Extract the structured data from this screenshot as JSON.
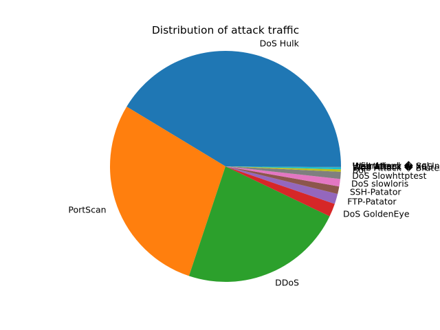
{
  "chart_data": {
    "type": "pie",
    "title": "Distribution of attack traffic",
    "start_angle": "counterclockwise from 3 o'clock (0°)",
    "slices": [
      {
        "label": "DoS Hulk",
        "value": 230124,
        "color": "#1f77b4"
      },
      {
        "label": "PortScan",
        "value": 158804,
        "color": "#ff7f0e"
      },
      {
        "label": "DDoS",
        "value": 128025,
        "color": "#2ca02c"
      },
      {
        "label": "DoS GoldenEye",
        "value": 10293,
        "color": "#d62728"
      },
      {
        "label": "FTP-Patator",
        "value": 7935,
        "color": "#9467bd"
      },
      {
        "label": "SSH-Patator",
        "value": 5897,
        "color": "#8c564b"
      },
      {
        "label": "DoS slowloris",
        "value": 5796,
        "color": "#e377c2"
      },
      {
        "label": "DoS Slowhttptest",
        "value": 5499,
        "color": "#7f7f7f"
      },
      {
        "label": "Bot",
        "value": 1956,
        "color": "#bcbd22"
      },
      {
        "label": "Web Attack � Brute Force",
        "value": 1507,
        "color": "#17becf"
      },
      {
        "label": "Web Attack � XSS",
        "value": 652,
        "color": "#1f77b4"
      },
      {
        "label": "Infiltration",
        "value": 36,
        "color": "#ff7f0e"
      },
      {
        "label": "Web Attack � Sql Injection",
        "value": 21,
        "color": "#2ca02c"
      },
      {
        "label": "Heartbleed",
        "value": 11,
        "color": "#d62728"
      }
    ]
  }
}
